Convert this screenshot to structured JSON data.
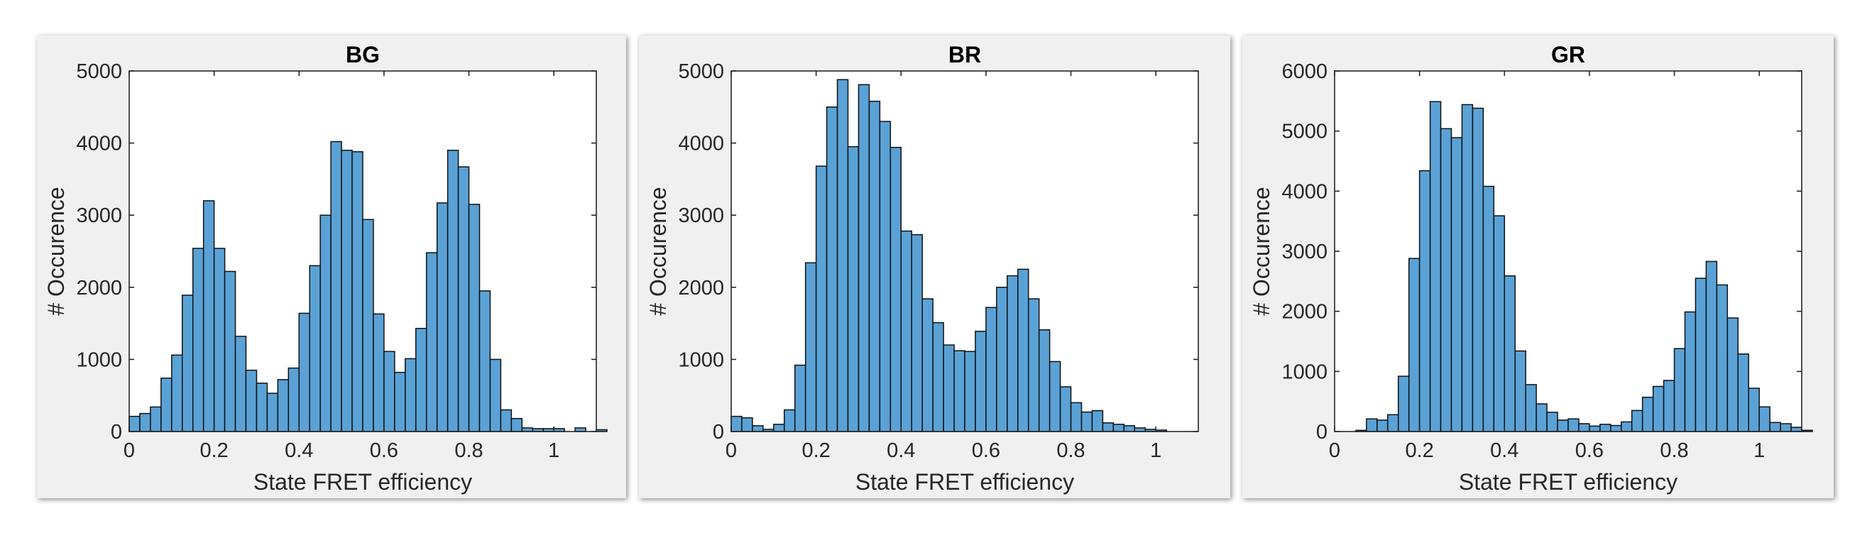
{
  "chart_data": [
    {
      "type": "bar",
      "title": "BG",
      "xlabel": "State FRET efficiency",
      "ylabel": "# Occurence",
      "xlim": [
        0,
        1.1
      ],
      "ylim": [
        0,
        5000
      ],
      "xticks": [
        "0",
        "0.2",
        "0.4",
        "0.6",
        "0.8",
        "1"
      ],
      "yticks": [
        "0",
        "1000",
        "2000",
        "3000",
        "4000",
        "5000"
      ],
      "bin_width": 0.025,
      "bin_start": 0,
      "values": [
        210,
        250,
        340,
        740,
        1060,
        1890,
        2540,
        3200,
        2540,
        2220,
        1320,
        850,
        670,
        530,
        720,
        880,
        1640,
        2300,
        3000,
        4020,
        3900,
        3880,
        2940,
        1630,
        1110,
        820,
        1010,
        1430,
        2480,
        3170,
        3900,
        3670,
        3150,
        1950,
        1000,
        300,
        180,
        50,
        40,
        40,
        40,
        0,
        50,
        0,
        25,
        0
      ],
      "bar_color": "#5aa2d6"
    },
    {
      "type": "bar",
      "title": "BR",
      "xlabel": "State FRET efficiency",
      "ylabel": "# Occurence",
      "xlim": [
        0,
        1.1
      ],
      "ylim": [
        0,
        5000
      ],
      "xticks": [
        "0",
        "0.2",
        "0.4",
        "0.6",
        "0.8",
        "1"
      ],
      "yticks": [
        "0",
        "1000",
        "2000",
        "3000",
        "4000",
        "5000"
      ],
      "bin_width": 0.025,
      "bin_start": 0,
      "values": [
        210,
        190,
        80,
        30,
        100,
        300,
        920,
        2340,
        3680,
        4500,
        4880,
        3950,
        4810,
        4580,
        4300,
        3940,
        2780,
        2730,
        1840,
        1510,
        1200,
        1120,
        1110,
        1390,
        1720,
        2000,
        2160,
        2250,
        1840,
        1410,
        970,
        620,
        400,
        270,
        290,
        120,
        100,
        80,
        50,
        30,
        20,
        0,
        0,
        0,
        0,
        0
      ],
      "bar_color": "#5aa2d6"
    },
    {
      "type": "bar",
      "title": "GR",
      "xlabel": "State FRET efficiency",
      "ylabel": "# Occurence",
      "xlim": [
        0,
        1.1
      ],
      "ylim": [
        0,
        6000
      ],
      "xticks": [
        "0",
        "0.2",
        "0.4",
        "0.6",
        "0.8",
        "1"
      ],
      "yticks": [
        "0",
        "1000",
        "2000",
        "3000",
        "4000",
        "5000",
        "6000"
      ],
      "bin_width": 0.025,
      "bin_start": 0,
      "values": [
        0,
        0,
        20,
        210,
        190,
        280,
        920,
        2880,
        4340,
        5490,
        5040,
        4890,
        5440,
        5380,
        4080,
        3590,
        2590,
        1340,
        780,
        460,
        320,
        190,
        210,
        130,
        90,
        120,
        100,
        160,
        350,
        570,
        750,
        850,
        1380,
        1990,
        2550,
        2830,
        2440,
        1890,
        1290,
        720,
        410,
        150,
        130,
        70,
        20,
        0
      ],
      "bar_color": "#5aa2d6"
    }
  ]
}
